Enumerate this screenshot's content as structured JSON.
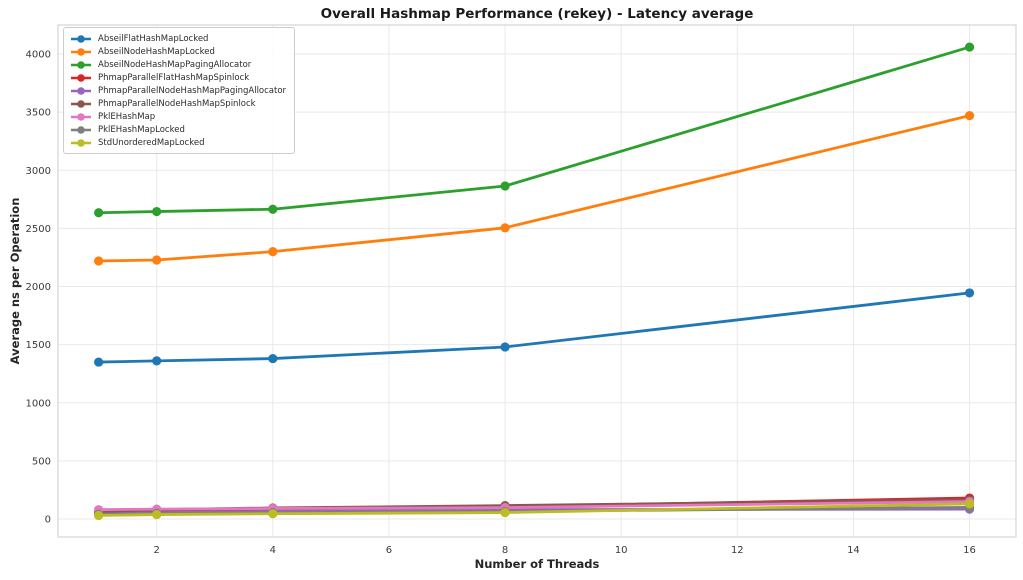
{
  "chart_data": {
    "type": "line",
    "title": "Overall Hashmap Performance (rekey) - Latency average",
    "xlabel": "Number of Threads",
    "ylabel": "Average ns per Operation",
    "x": [
      1,
      2,
      4,
      8,
      16
    ],
    "x_ticks": [
      2,
      4,
      6,
      8,
      10,
      12,
      14,
      16
    ],
    "y_ticks": [
      0,
      500,
      1000,
      1500,
      2000,
      2500,
      3000,
      3500,
      4000
    ],
    "xlim": [
      0.3,
      16.8
    ],
    "ylim": [
      -155,
      4250
    ],
    "grid": true,
    "grid_color": "#e9e9e9",
    "spine_color": "#d4d4d4",
    "legend_position": "upper-left",
    "series": [
      {
        "name": "AbseilFlatHashMapLocked",
        "color": "#1f77b4",
        "values": [
          1350,
          1360,
          1380,
          1480,
          1945
        ]
      },
      {
        "name": "AbseilNodeHashMapLocked",
        "color": "#ff7f0e",
        "values": [
          2220,
          2228,
          2300,
          2505,
          3470
        ]
      },
      {
        "name": "AbseilNodeHashMapPagingAllocator",
        "color": "#2ca02c",
        "values": [
          2635,
          2645,
          2665,
          2865,
          4060
        ]
      },
      {
        "name": "PhmapParallelFlatHashMapSpinlock",
        "color": "#d62728",
        "values": [
          55,
          65,
          80,
          105,
          180
        ]
      },
      {
        "name": "PhmapParallelNodeHashMapPagingAllocator",
        "color": "#9467bd",
        "values": [
          45,
          55,
          65,
          80,
          85
        ]
      },
      {
        "name": "PhmapParallelNodeHashMapSpinlock",
        "color": "#8c564b",
        "values": [
          65,
          80,
          95,
          115,
          165
        ]
      },
      {
        "name": "PklEHashMap",
        "color": "#e377c2",
        "values": [
          80,
          85,
          90,
          98,
          150
        ]
      },
      {
        "name": "PklEHashMapLocked",
        "color": "#7f7f7f",
        "values": [
          40,
          48,
          55,
          65,
          100
        ]
      },
      {
        "name": "StdUnorderedMapLocked",
        "color": "#bcbd22",
        "values": [
          30,
          38,
          45,
          55,
          130
        ]
      }
    ]
  }
}
